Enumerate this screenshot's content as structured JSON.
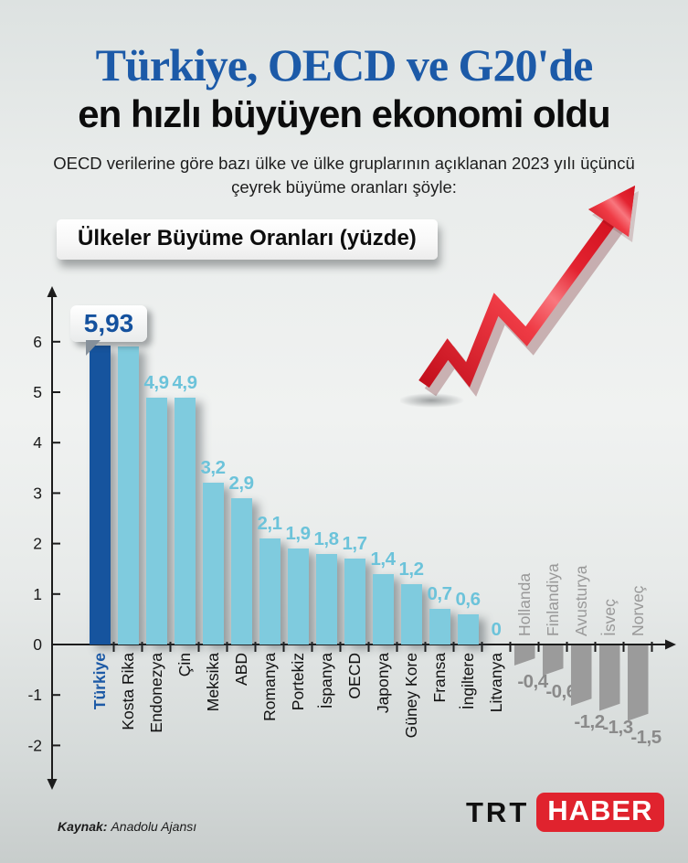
{
  "title": {
    "line1": "Türkiye, OECD ve G20'de",
    "line2": "en hızlı büyüyen ekonomi oldu"
  },
  "subtitle": "OECD verilerine göre bazı ülke ve ülke gruplarının açıklanan 2023 yılı üçüncü çeyrek büyüme oranları şöyle:",
  "callout": {
    "value": "5,93"
  },
  "source": {
    "label": "Kaynak:",
    "text": "Anadolu Ajansı"
  },
  "logo": {
    "trt": "TRT",
    "haber": "HABER"
  },
  "colors": {
    "title_blue": "#1c5aa8",
    "bar_positive": "#7fcbde",
    "bar_highlight": "#16549e",
    "bar_negative": "#9b9b9b",
    "value_text": "#6cc3da",
    "negative_text": "#8a8a8a",
    "negative_label": "#999999",
    "category_text": "#121212",
    "highlight_label": "#1d5aa6",
    "axis": "#1c1c1c",
    "logo_red": "#e0232e",
    "arrow_red": "#e01b27"
  },
  "chart_data": {
    "type": "bar",
    "title": "Ülkeler Büyüme Oranları (yüzde)",
    "xlabel": "",
    "ylabel": "",
    "categories": [
      "Türkiye",
      "Kosta Rika",
      "Endonezya",
      "Çin",
      "Meksika",
      "ABD",
      "Romanya",
      "Portekiz",
      "İspanya",
      "OECD",
      "Japonya",
      "Güney Kore",
      "Fransa",
      "İngiltere",
      "Litvanya",
      "Hollanda",
      "Finlandiya",
      "Avusturya",
      "İsveç",
      "Norveç"
    ],
    "values": [
      5.93,
      5.9,
      4.9,
      4.9,
      3.2,
      2.9,
      2.1,
      1.9,
      1.8,
      1.7,
      1.4,
      1.2,
      0.7,
      0.6,
      0,
      -0.4,
      -0.6,
      -1.2,
      -1.3,
      -1.5
    ],
    "value_labels": [
      "5,93",
      "5,9",
      "4,9",
      "4,9",
      "3,2",
      "2,9",
      "2,1",
      "1,9",
      "1,8",
      "1,7",
      "1,4",
      "1,2",
      "0,7",
      "0,6",
      "0",
      "-0,4",
      "-0,6",
      "-1,2",
      "-1,3",
      "-1,5"
    ],
    "highlight_category": "Türkiye",
    "highlight_index": 0,
    "callout_index": 0,
    "ylim": [
      -2,
      6
    ],
    "yticks": [
      6,
      5,
      4,
      3,
      2,
      1,
      0,
      -1,
      -2
    ],
    "grid": false,
    "legend": "none"
  }
}
